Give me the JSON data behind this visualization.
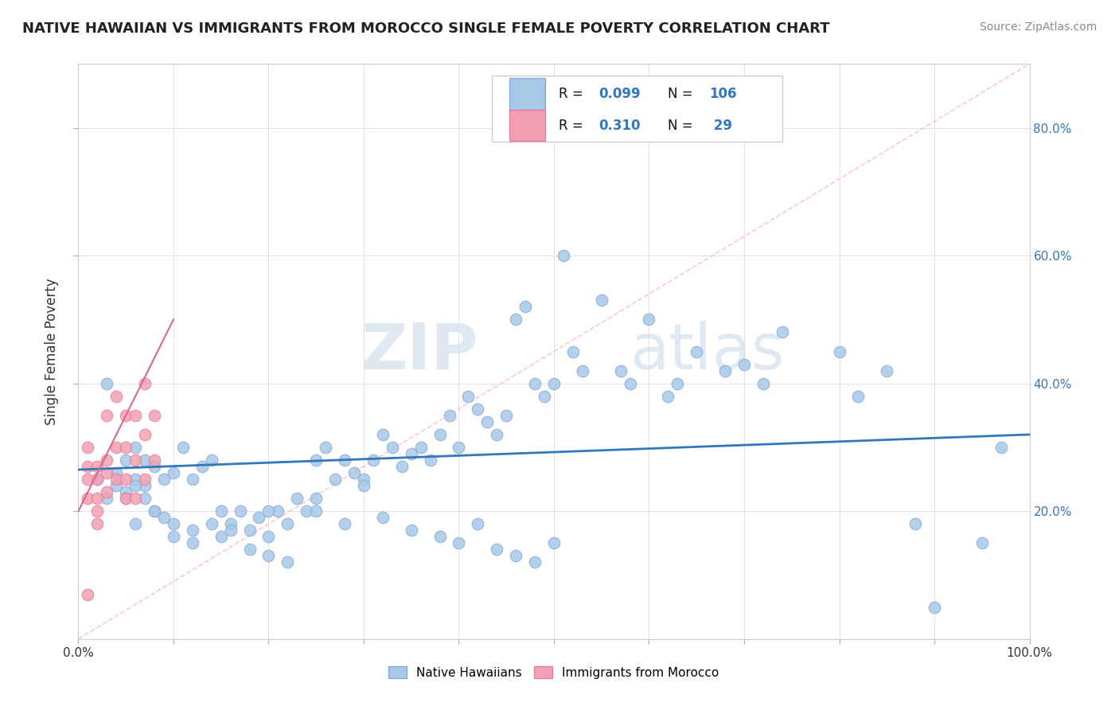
{
  "title": "NATIVE HAWAIIAN VS IMMIGRANTS FROM MOROCCO SINGLE FEMALE POVERTY CORRELATION CHART",
  "source": "Source: ZipAtlas.com",
  "ylabel": "Single Female Poverty",
  "ylabel_right_ticks": [
    "20.0%",
    "40.0%",
    "60.0%",
    "80.0%"
  ],
  "ylabel_right_values": [
    0.2,
    0.4,
    0.6,
    0.8
  ],
  "watermark_zip": "ZIP",
  "watermark_atlas": "atlas",
  "blue_color": "#a8c8e8",
  "pink_color": "#f4a0b0",
  "line_blue": "#3377bb",
  "line_pink": "#dd6688",
  "scatter_blue_x": [
    0.02,
    0.03,
    0.04,
    0.05,
    0.05,
    0.06,
    0.06,
    0.07,
    0.07,
    0.08,
    0.09,
    0.1,
    0.11,
    0.12,
    0.13,
    0.14,
    0.15,
    0.16,
    0.17,
    0.18,
    0.19,
    0.2,
    0.21,
    0.22,
    0.23,
    0.24,
    0.25,
    0.26,
    0.27,
    0.28,
    0.29,
    0.3,
    0.31,
    0.32,
    0.33,
    0.34,
    0.35,
    0.36,
    0.37,
    0.38,
    0.39,
    0.4,
    0.41,
    0.42,
    0.43,
    0.44,
    0.45,
    0.46,
    0.47,
    0.48,
    0.49,
    0.5,
    0.51,
    0.52,
    0.53,
    0.55,
    0.57,
    0.58,
    0.6,
    0.62,
    0.63,
    0.65,
    0.68,
    0.7,
    0.72,
    0.74,
    0.8,
    0.82,
    0.85,
    0.88,
    0.9,
    0.95,
    0.97,
    0.03,
    0.05,
    0.06,
    0.08,
    0.1,
    0.12,
    0.14,
    0.16,
    0.18,
    0.2,
    0.22,
    0.25,
    0.28,
    0.32,
    0.35,
    0.38,
    0.4,
    0.42,
    0.44,
    0.46,
    0.48,
    0.5,
    0.04,
    0.06,
    0.07,
    0.08,
    0.09,
    0.1,
    0.12,
    0.15,
    0.2,
    0.25,
    0.3
  ],
  "scatter_blue_y": [
    0.25,
    0.22,
    0.24,
    0.23,
    0.28,
    0.25,
    0.3,
    0.24,
    0.28,
    0.27,
    0.25,
    0.26,
    0.3,
    0.25,
    0.27,
    0.28,
    0.2,
    0.18,
    0.2,
    0.17,
    0.19,
    0.16,
    0.2,
    0.18,
    0.22,
    0.2,
    0.28,
    0.3,
    0.25,
    0.28,
    0.26,
    0.25,
    0.28,
    0.32,
    0.3,
    0.27,
    0.29,
    0.3,
    0.28,
    0.32,
    0.35,
    0.3,
    0.38,
    0.36,
    0.34,
    0.32,
    0.35,
    0.5,
    0.52,
    0.4,
    0.38,
    0.4,
    0.6,
    0.45,
    0.42,
    0.53,
    0.42,
    0.4,
    0.5,
    0.38,
    0.4,
    0.45,
    0.42,
    0.43,
    0.4,
    0.48,
    0.45,
    0.38,
    0.42,
    0.18,
    0.05,
    0.15,
    0.3,
    0.4,
    0.22,
    0.18,
    0.2,
    0.16,
    0.15,
    0.18,
    0.17,
    0.14,
    0.13,
    0.12,
    0.2,
    0.18,
    0.19,
    0.17,
    0.16,
    0.15,
    0.18,
    0.14,
    0.13,
    0.12,
    0.15,
    0.26,
    0.24,
    0.22,
    0.2,
    0.19,
    0.18,
    0.17,
    0.16,
    0.2,
    0.22,
    0.24
  ],
  "scatter_pink_x": [
    0.01,
    0.01,
    0.01,
    0.01,
    0.02,
    0.02,
    0.02,
    0.02,
    0.03,
    0.03,
    0.03,
    0.03,
    0.04,
    0.04,
    0.04,
    0.05,
    0.05,
    0.05,
    0.05,
    0.06,
    0.06,
    0.06,
    0.07,
    0.07,
    0.07,
    0.08,
    0.08,
    0.01,
    0.02
  ],
  "scatter_pink_y": [
    0.22,
    0.25,
    0.27,
    0.3,
    0.2,
    0.22,
    0.25,
    0.27,
    0.23,
    0.26,
    0.28,
    0.35,
    0.25,
    0.3,
    0.38,
    0.22,
    0.25,
    0.3,
    0.35,
    0.22,
    0.28,
    0.35,
    0.25,
    0.32,
    0.4,
    0.28,
    0.35,
    0.07,
    0.18
  ],
  "xlim": [
    0.0,
    1.0
  ],
  "ylim": [
    0.0,
    0.9
  ],
  "blue_trend_x": [
    0.0,
    1.0
  ],
  "blue_trend_y": [
    0.265,
    0.32
  ],
  "pink_trend_x": [
    0.0,
    0.1
  ],
  "pink_trend_y": [
    0.2,
    0.5
  ],
  "ref_line_x": [
    0.0,
    1.0
  ],
  "ref_line_y": [
    0.0,
    0.9
  ],
  "background_color": "#ffffff",
  "grid_color": "#dddddd",
  "spine_color": "#cccccc"
}
